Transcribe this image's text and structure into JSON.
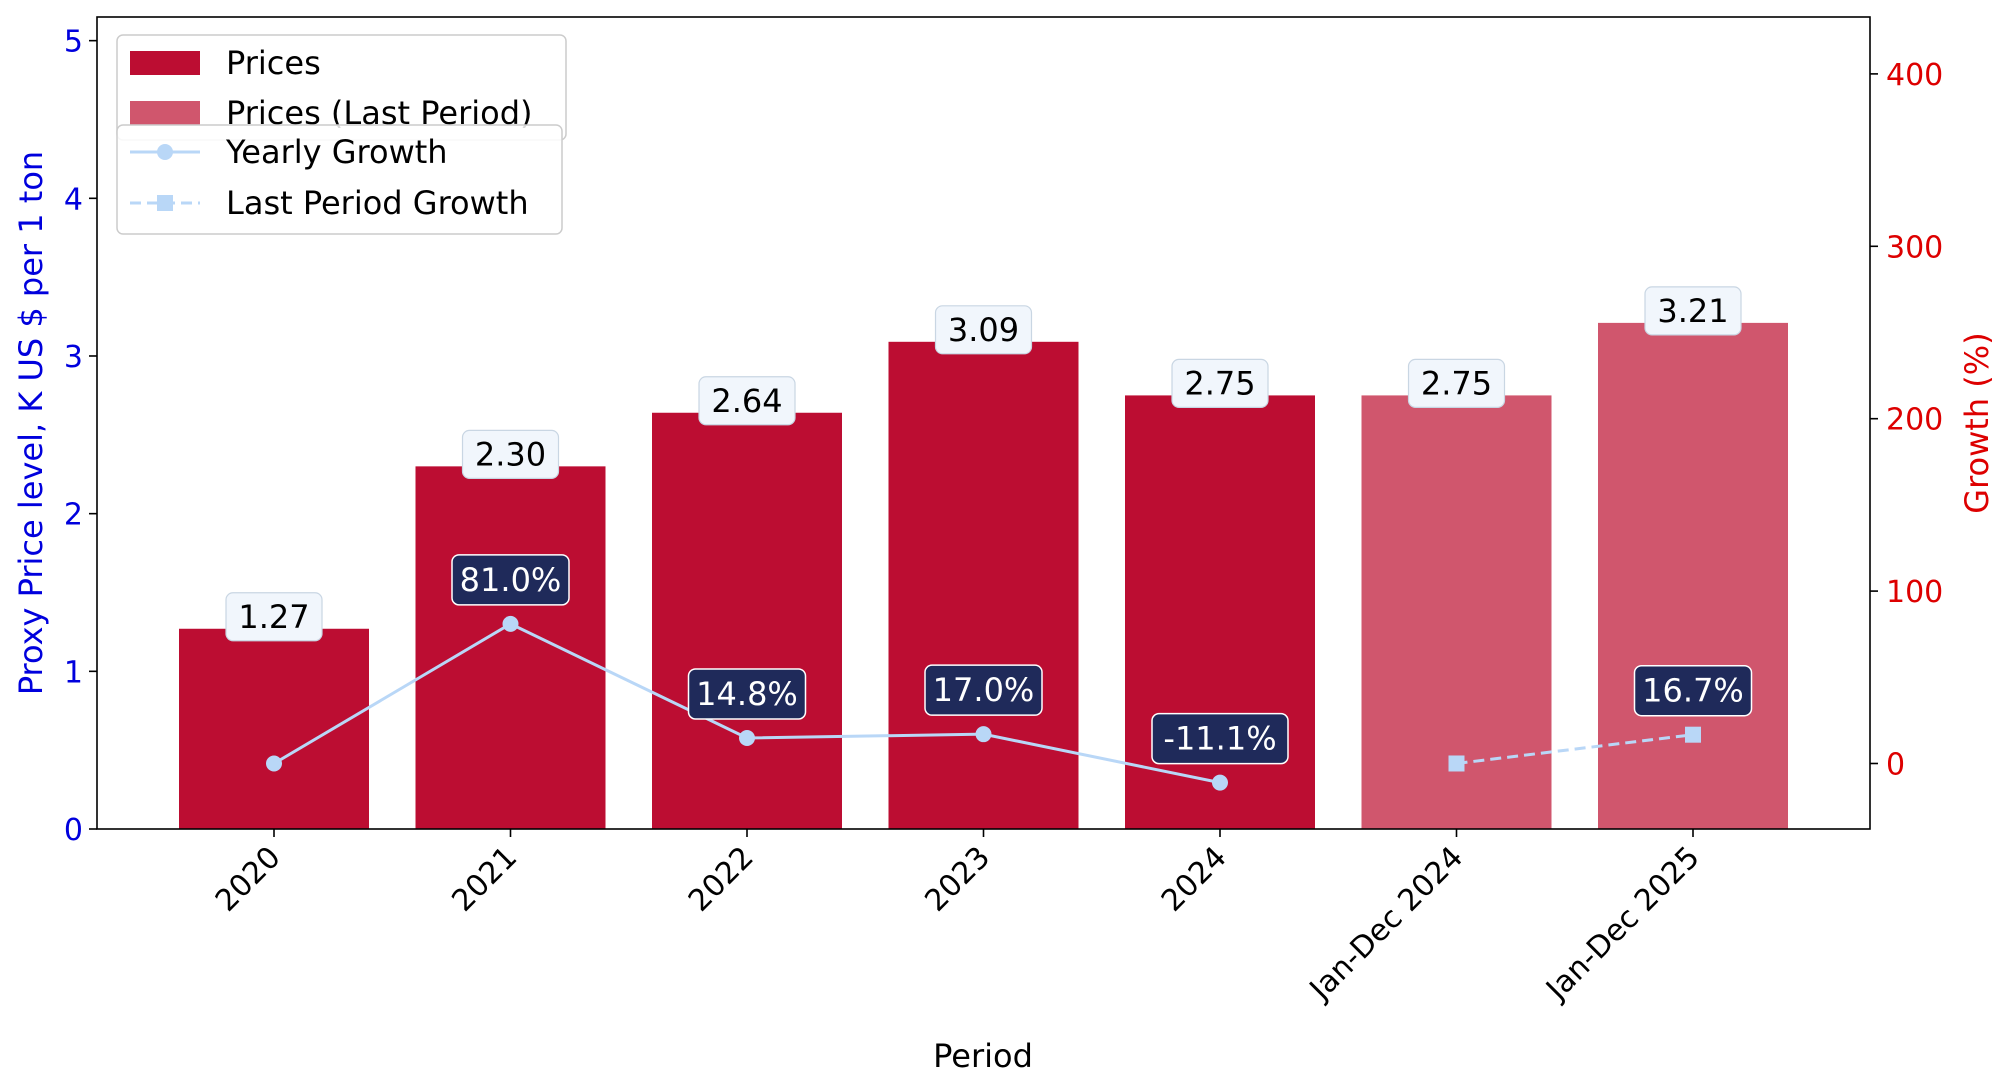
{
  "chart_data": {
    "type": "bar",
    "categories": [
      "2020",
      "2021",
      "2022",
      "2023",
      "2024",
      "Jan-Dec 2024",
      "Jan-Dec 2025"
    ],
    "xlabel": "Period",
    "ylabel_left": "Proxy Price level, K US $ per 1 ton",
    "ylabel_right": "Growth (%)",
    "ylim_left": [
      0,
      5.15
    ],
    "ylim_right": [
      -38,
      433
    ],
    "yticks_left": [
      "0",
      "1",
      "2",
      "3",
      "4",
      "5"
    ],
    "yticks_right": [
      "0",
      "100",
      "200",
      "300",
      "400"
    ],
    "grid": false,
    "series": [
      {
        "name": "Prices",
        "axis": "left",
        "kind": "bar",
        "color": "#bc0d32",
        "values": [
          1.27,
          2.3,
          2.64,
          3.09,
          2.75,
          null,
          null
        ],
        "labels": [
          "1.27",
          "2.30",
          "2.64",
          "3.09",
          "2.75",
          "",
          ""
        ]
      },
      {
        "name": "Prices (Last Period)",
        "axis": "left",
        "kind": "bar",
        "color": "#d0566d",
        "values": [
          null,
          null,
          null,
          null,
          null,
          2.75,
          3.21
        ],
        "labels": [
          "",
          "",
          "",
          "",
          "",
          "2.75",
          "3.21"
        ]
      },
      {
        "name": "Yearly Growth",
        "axis": "right",
        "kind": "line",
        "style": "solid",
        "marker": "circle",
        "color": "#b9d7f7",
        "values": [
          0,
          81.0,
          14.8,
          17.0,
          -11.1,
          null,
          null
        ],
        "labels": [
          "",
          "81.0%",
          "14.8%",
          "17.0%",
          "-11.1%",
          "",
          ""
        ]
      },
      {
        "name": "Last Period Growth",
        "axis": "right",
        "kind": "line",
        "style": "dashed",
        "marker": "square",
        "color": "#b9d7f7",
        "values": [
          null,
          null,
          null,
          null,
          null,
          0,
          16.7
        ],
        "labels": [
          "",
          "",
          "",
          "",
          "",
          "",
          "16.7%"
        ]
      }
    ],
    "legend_placement": "top-left",
    "colors": {
      "left_axis": "#0000dd",
      "right_axis": "#dd0000",
      "growth_label_bg": "#1f2a5a",
      "price_label_bg": "#f1f6fc"
    }
  }
}
